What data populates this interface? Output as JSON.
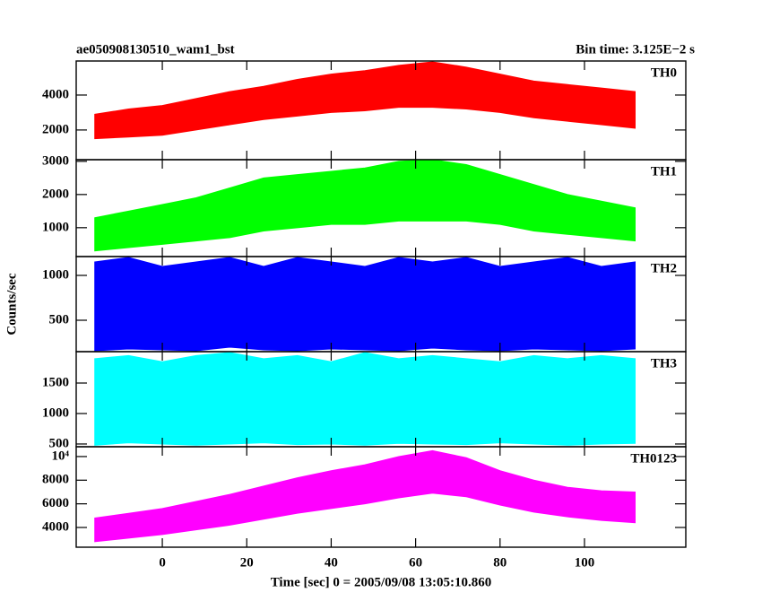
{
  "title": "ae050908130510_wam1_bst",
  "bin_time": "Bin time: 3.125E−2 s",
  "ylabel": "Counts/sec",
  "xlabel": "Time [sec] 0 = 2005/09/08 13:05:10.860",
  "xlim": [
    -20.4,
    124
  ],
  "xticks": [
    0,
    20,
    40,
    60,
    80,
    100
  ],
  "chart_data": [
    {
      "type": "area",
      "label": "TH0",
      "color": "#ff0000",
      "ylim": [
        300,
        5950
      ],
      "yticks": [
        2000,
        4000
      ],
      "x": [
        -16,
        -8,
        0,
        8,
        16,
        24,
        32,
        40,
        48,
        56,
        64,
        72,
        80,
        88,
        96,
        104,
        112
      ],
      "high": [
        2900,
        3200,
        3400,
        3800,
        4200,
        4500,
        4900,
        5200,
        5400,
        5700,
        5900,
        5600,
        5200,
        4800,
        4600,
        4400,
        4200
      ],
      "low": [
        1500,
        1600,
        1700,
        2000,
        2300,
        2600,
        2800,
        3000,
        3100,
        3300,
        3300,
        3200,
        3000,
        2700,
        2500,
        2300,
        2100
      ]
    },
    {
      "type": "area",
      "label": "TH1",
      "color": "#00ff00",
      "ylim": [
        130,
        3050
      ],
      "yticks": [
        1000,
        2000,
        3000
      ],
      "x": [
        -16,
        -8,
        0,
        8,
        16,
        24,
        32,
        40,
        48,
        56,
        64,
        72,
        80,
        88,
        96,
        104,
        112
      ],
      "high": [
        1300,
        1500,
        1700,
        1900,
        2200,
        2500,
        2600,
        2700,
        2800,
        3000,
        3050,
        2900,
        2600,
        2300,
        2000,
        1800,
        1600
      ],
      "low": [
        300,
        400,
        500,
        600,
        700,
        900,
        1000,
        1100,
        1100,
        1200,
        1200,
        1200,
        1100,
        900,
        800,
        700,
        600
      ]
    },
    {
      "type": "area",
      "label": "TH2",
      "color": "#0000ff",
      "ylim": [
        150,
        1210
      ],
      "yticks": [
        500,
        1000
      ],
      "x": [
        -16,
        -8,
        0,
        8,
        16,
        24,
        32,
        40,
        48,
        56,
        64,
        72,
        80,
        88,
        96,
        104,
        112
      ],
      "high": [
        1150,
        1200,
        1100,
        1150,
        1200,
        1100,
        1200,
        1150,
        1100,
        1200,
        1150,
        1200,
        1100,
        1150,
        1200,
        1100,
        1150
      ],
      "low": [
        160,
        180,
        170,
        160,
        200,
        170,
        160,
        180,
        170,
        160,
        190,
        170,
        160,
        180,
        170,
        160,
        180
      ]
    },
    {
      "type": "area",
      "label": "TH3",
      "color": "#00ffff",
      "ylim": [
        455,
        2015
      ],
      "yticks": [
        500,
        1000,
        1500
      ],
      "x": [
        -16,
        -8,
        0,
        8,
        16,
        24,
        32,
        40,
        48,
        56,
        64,
        72,
        80,
        88,
        96,
        104,
        112
      ],
      "high": [
        1900,
        1950,
        1850,
        1950,
        2000,
        1900,
        1950,
        1850,
        2000,
        1900,
        1950,
        1900,
        1850,
        1950,
        1900,
        1950,
        1900
      ],
      "low": [
        480,
        520,
        500,
        480,
        500,
        520,
        490,
        500,
        480,
        510,
        500,
        490,
        520,
        500,
        480,
        500,
        510
      ]
    },
    {
      "type": "area",
      "label": "TH0123",
      "color": "#ff00ff",
      "ylim": [
        2330,
        10830
      ],
      "yticks": [
        4000,
        6000,
        8000,
        {
          "value": 10000,
          "label": "10⁴"
        }
      ],
      "x": [
        -16,
        -8,
        0,
        8,
        16,
        24,
        32,
        40,
        48,
        56,
        64,
        72,
        80,
        88,
        96,
        104,
        112
      ],
      "high": [
        4800,
        5200,
        5600,
        6200,
        6800,
        7500,
        8200,
        8800,
        9300,
        10000,
        10500,
        9900,
        8800,
        8000,
        7400,
        7100,
        7000
      ],
      "low": [
        2800,
        3100,
        3400,
        3800,
        4200,
        4700,
        5200,
        5600,
        6000,
        6500,
        6900,
        6600,
        5900,
        5300,
        4900,
        4600,
        4400
      ]
    }
  ]
}
